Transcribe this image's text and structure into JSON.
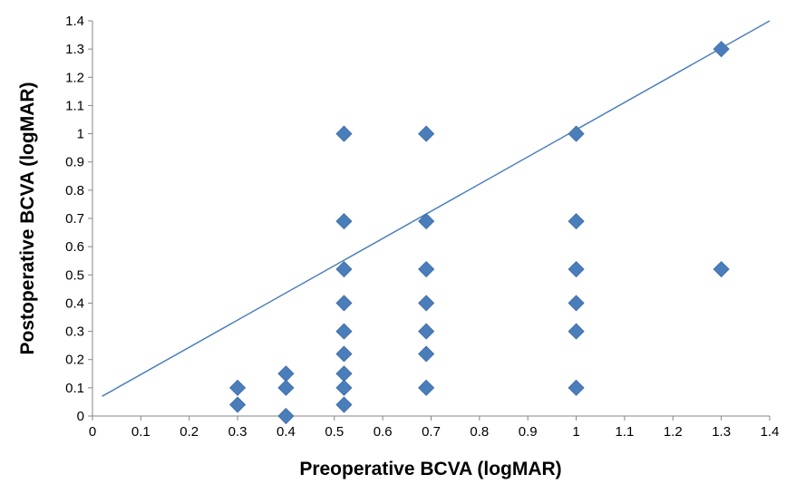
{
  "chart_data": {
    "type": "scatter",
    "title": "",
    "xlabel": "Preoperative BCVA (logMAR)",
    "ylabel": "Postoperative BCVA (logMAR)",
    "xlim": [
      0,
      1.4
    ],
    "ylim": [
      0,
      1.4
    ],
    "x_ticks": [
      "0",
      "0.1",
      "0.2",
      "0.3",
      "0.4",
      "0.5",
      "0.6",
      "0.7",
      "0.8",
      "0.9",
      "1",
      "1.1",
      "1.2",
      "1.3",
      "1.4"
    ],
    "y_ticks": [
      "0",
      "0.1",
      "0.2",
      "0.3",
      "0.4",
      "0.5",
      "0.6",
      "0.7",
      "0.8",
      "0.9",
      "1",
      "1.1",
      "1.2",
      "1.3",
      "1.4"
    ],
    "grid": false,
    "legend": "none",
    "marker_color": "#4a7ebb",
    "line_color": "#4a7ebb",
    "points": [
      {
        "x": 0.3,
        "y": 0.1
      },
      {
        "x": 0.3,
        "y": 0.04
      },
      {
        "x": 0.4,
        "y": 0.15
      },
      {
        "x": 0.4,
        "y": 0.1
      },
      {
        "x": 0.4,
        "y": 0.0
      },
      {
        "x": 0.52,
        "y": 1.0
      },
      {
        "x": 0.52,
        "y": 0.69
      },
      {
        "x": 0.52,
        "y": 0.52
      },
      {
        "x": 0.52,
        "y": 0.4
      },
      {
        "x": 0.52,
        "y": 0.3
      },
      {
        "x": 0.52,
        "y": 0.22
      },
      {
        "x": 0.52,
        "y": 0.15
      },
      {
        "x": 0.52,
        "y": 0.1
      },
      {
        "x": 0.52,
        "y": 0.04
      },
      {
        "x": 0.69,
        "y": 1.0
      },
      {
        "x": 0.69,
        "y": 0.69
      },
      {
        "x": 0.69,
        "y": 0.52
      },
      {
        "x": 0.69,
        "y": 0.4
      },
      {
        "x": 0.69,
        "y": 0.3
      },
      {
        "x": 0.69,
        "y": 0.22
      },
      {
        "x": 0.69,
        "y": 0.1
      },
      {
        "x": 1.0,
        "y": 1.0
      },
      {
        "x": 1.0,
        "y": 0.69
      },
      {
        "x": 1.0,
        "y": 0.52
      },
      {
        "x": 1.0,
        "y": 0.4
      },
      {
        "x": 1.0,
        "y": 0.3
      },
      {
        "x": 1.0,
        "y": 0.1
      },
      {
        "x": 1.3,
        "y": 1.3
      },
      {
        "x": 1.3,
        "y": 0.52
      }
    ],
    "trendline": {
      "x1": 0.02,
      "y1": 0.07,
      "x2": 1.4,
      "y2": 1.4
    }
  }
}
